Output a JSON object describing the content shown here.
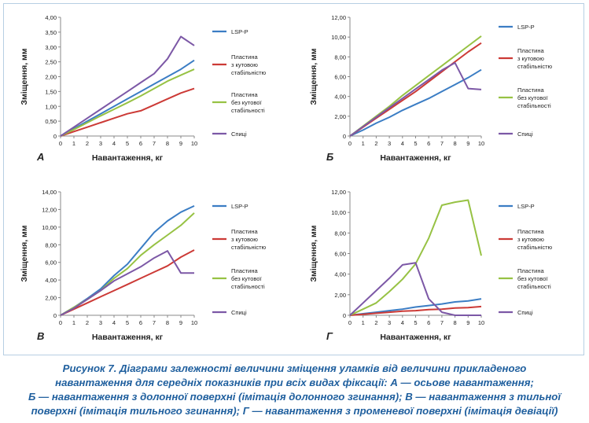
{
  "chart_data": [
    {
      "type": "line",
      "panel_label": "А",
      "xlabel": "Навантаження, кг",
      "ylabel": "Зміщення, мм",
      "x": [
        0,
        1,
        2,
        3,
        4,
        5,
        6,
        7,
        8,
        9,
        10
      ],
      "x_ticks": [
        "0",
        "1",
        "2",
        "3",
        "4",
        "5",
        "6",
        "7",
        "8",
        "9",
        "10"
      ],
      "ylim": [
        0,
        4
      ],
      "y_ticks": [
        "0",
        "0,50",
        "1,00",
        "1,50",
        "2,00",
        "2,50",
        "3,00",
        "3,50",
        "4,00"
      ],
      "series": [
        {
          "name": "LSP-P",
          "color": "#3b7dc4",
          "values": [
            0,
            0.25,
            0.5,
            0.75,
            1.0,
            1.25,
            1.5,
            1.75,
            2.0,
            2.25,
            2.55
          ]
        },
        {
          "name": "Пластина\nз кутовою\nстабільністю",
          "color": "#cc3a36",
          "values": [
            0,
            0.15,
            0.3,
            0.45,
            0.6,
            0.75,
            0.85,
            1.05,
            1.25,
            1.45,
            1.6
          ]
        },
        {
          "name": "Пластина\nбез кутової\nстабільності",
          "color": "#97c244",
          "values": [
            0,
            0.22,
            0.45,
            0.68,
            0.9,
            1.12,
            1.35,
            1.6,
            1.85,
            2.05,
            2.25
          ]
        },
        {
          "name": "Спиці",
          "color": "#7c58a6",
          "values": [
            0,
            0.3,
            0.6,
            0.9,
            1.2,
            1.5,
            1.8,
            2.1,
            2.6,
            3.35,
            3.05
          ]
        }
      ]
    },
    {
      "type": "line",
      "panel_label": "Б",
      "xlabel": "Навантаження, кг",
      "ylabel": "Зміщення, мм",
      "x": [
        0,
        1,
        2,
        3,
        4,
        5,
        6,
        7,
        8,
        9,
        10
      ],
      "x_ticks": [
        "0",
        "1",
        "2",
        "3",
        "4",
        "5",
        "6",
        "7",
        "8",
        "9",
        "10"
      ],
      "ylim": [
        0,
        12
      ],
      "y_ticks": [
        "0",
        "2,00",
        "4,00",
        "6,00",
        "8,00",
        "10,00",
        "12,00"
      ],
      "series": [
        {
          "name": "LSP-P",
          "color": "#3b7dc4",
          "values": [
            0,
            0.6,
            1.3,
            1.9,
            2.6,
            3.2,
            3.8,
            4.5,
            5.2,
            5.9,
            6.7
          ]
        },
        {
          "name": "Пластина\nз кутовою\nстабільністю",
          "color": "#cc3a36",
          "values": [
            0,
            0.9,
            1.8,
            2.7,
            3.6,
            4.5,
            5.5,
            6.5,
            7.5,
            8.5,
            9.4
          ]
        },
        {
          "name": "Пластина\nбез кутової\nстабільності",
          "color": "#97c244",
          "values": [
            0,
            1.0,
            2.0,
            3.0,
            4.1,
            5.1,
            6.1,
            7.1,
            8.1,
            9.1,
            10.1
          ]
        },
        {
          "name": "Спиці",
          "color": "#7c58a6",
          "values": [
            0,
            0.95,
            1.9,
            2.85,
            3.8,
            4.75,
            5.7,
            6.65,
            7.4,
            4.8,
            4.7
          ]
        }
      ]
    },
    {
      "type": "line",
      "panel_label": "В",
      "xlabel": "Навантаження, кг",
      "ylabel": "Зміщення, мм",
      "x": [
        0,
        1,
        2,
        3,
        4,
        5,
        6,
        7,
        8,
        9,
        10
      ],
      "x_ticks": [
        "0",
        "1",
        "2",
        "3",
        "4",
        "5",
        "6",
        "7",
        "8",
        "9",
        "10"
      ],
      "ylim": [
        0,
        14
      ],
      "y_ticks": [
        "0",
        "2,00",
        "4,00",
        "6,00",
        "8,00",
        "10,00",
        "12,00",
        "14,00"
      ],
      "series": [
        {
          "name": "LSP-P",
          "color": "#3b7dc4",
          "values": [
            0,
            0.9,
            1.9,
            3.0,
            4.5,
            5.8,
            7.6,
            9.4,
            10.7,
            11.7,
            12.4
          ]
        },
        {
          "name": "Пластина\nз кутовою\nстабільністю",
          "color": "#cc3a36",
          "values": [
            0,
            0.7,
            1.4,
            2.1,
            2.8,
            3.5,
            4.2,
            4.9,
            5.6,
            6.6,
            7.4
          ]
        },
        {
          "name": "Пластина\nбез кутової\nстабільності",
          "color": "#97c244",
          "values": [
            0,
            0.9,
            1.8,
            2.8,
            4.2,
            5.3,
            6.8,
            8.0,
            9.1,
            10.2,
            11.6
          ]
        },
        {
          "name": "Спиці",
          "color": "#7c58a6",
          "values": [
            0,
            0.8,
            1.8,
            2.8,
            3.9,
            4.7,
            5.5,
            6.5,
            7.3,
            4.8,
            4.8
          ]
        }
      ]
    },
    {
      "type": "line",
      "panel_label": "Г",
      "xlabel": "Навантаження, кг",
      "ylabel": "Зміщення, мм",
      "x": [
        0,
        1,
        2,
        3,
        4,
        5,
        6,
        7,
        8,
        9,
        10
      ],
      "x_ticks": [
        "0",
        "1",
        "2",
        "3",
        "4",
        "5",
        "6",
        "7",
        "8",
        "9",
        "10"
      ],
      "ylim": [
        0,
        12
      ],
      "y_ticks": [
        "0",
        "2,00",
        "4,00",
        "6,00",
        "8,00",
        "10,00",
        "12,00"
      ],
      "series": [
        {
          "name": "LSP-P",
          "color": "#3b7dc4",
          "values": [
            0,
            0.15,
            0.3,
            0.45,
            0.6,
            0.8,
            0.95,
            1.1,
            1.3,
            1.4,
            1.6
          ]
        },
        {
          "name": "Пластина\nз кутовою\nстабільністю",
          "color": "#cc3a36",
          "values": [
            0,
            0.1,
            0.2,
            0.3,
            0.4,
            0.45,
            0.55,
            0.6,
            0.7,
            0.75,
            0.85
          ]
        },
        {
          "name": "Пластина\nбез кутової\nстабільності",
          "color": "#97c244",
          "values": [
            0,
            0.6,
            1.2,
            2.3,
            3.5,
            5.0,
            7.5,
            10.7,
            11.0,
            11.2,
            5.8
          ]
        },
        {
          "name": "Спиці",
          "color": "#7c58a6",
          "values": [
            0,
            1.2,
            2.4,
            3.6,
            4.9,
            5.1,
            1.6,
            0.3,
            0,
            0,
            0
          ]
        }
      ]
    }
  ],
  "caption": {
    "line1": "Рисунок 7. Діаграми залежності величини зміщення уламків від величини прикладеного",
    "line2": "навантаження для середніх показників при всіх видах фіксації: А — осьове навантаження;",
    "line3": "Б — навантаження з долонної поверхні (імітація долонного згинання); В — навантаження з тильної",
    "line4": "поверхні (імітація тильного згинання); Г — навантаження з променевої поверхні (імітація девіації)"
  },
  "colors": {
    "frame": "#b7cfe3",
    "axis": "#888888",
    "text": "#222222",
    "caption": "#1f5f9e"
  }
}
